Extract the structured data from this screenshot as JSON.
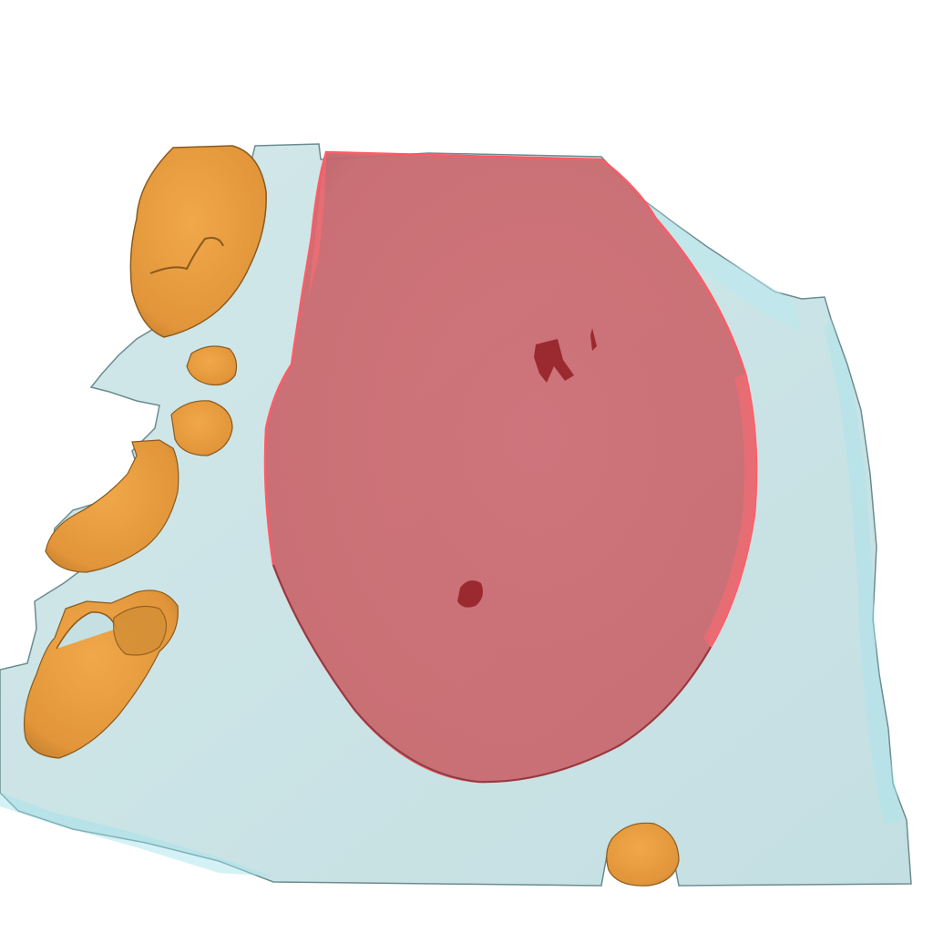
{
  "scene": {
    "background": "#ffffff",
    "structures": [
      {
        "name": "tissue-volume",
        "color": "#c8e4e6",
        "edge_color": "#7fdfe8"
      },
      {
        "name": "tumor-volume",
        "color": "#cc6b72",
        "edge_color": "#ff5a64",
        "opacity": 0.9
      },
      {
        "name": "nodule",
        "color": "#e89a3a",
        "edge_color": "#b06e1c"
      }
    ]
  }
}
